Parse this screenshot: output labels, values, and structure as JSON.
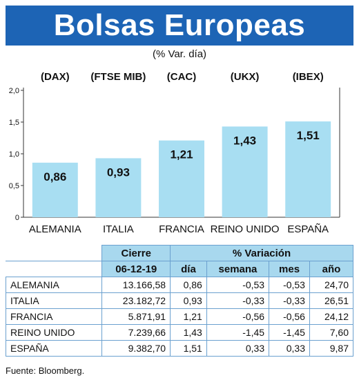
{
  "title": "Bolsas Europeas",
  "subtitle": "(% Var. día)",
  "chart_data": {
    "type": "bar",
    "index_labels": [
      "(DAX)",
      "(FTSE MIB)",
      "(CAC)",
      "(UKX)",
      "(IBEX)"
    ],
    "categories": [
      "ALEMANIA",
      "ITALIA",
      "FRANCIA",
      "REINO UNIDO",
      "ESPAÑA"
    ],
    "values": [
      0.86,
      0.93,
      1.21,
      1.43,
      1.51
    ],
    "value_labels": [
      "0,86",
      "0,93",
      "1,21",
      "1,43",
      "1,51"
    ],
    "yticks": [
      "0",
      "0,5",
      "1,0",
      "1,5",
      "2,0"
    ],
    "ylim": [
      0,
      2
    ],
    "bar_color": "#a8def2"
  },
  "table": {
    "header_cierre": "Cierre",
    "header_variacion": "% Variación",
    "date": "06-12-19",
    "columns": [
      "día",
      "semana",
      "mes",
      "año"
    ],
    "rows": [
      {
        "name": "ALEMANIA",
        "cierre": "13.166,58",
        "dia": "0,86",
        "semana": "-0,53",
        "mes": "-0,53",
        "anio": "24,70"
      },
      {
        "name": "ITALIA",
        "cierre": "23.182,72",
        "dia": "0,93",
        "semana": "-0,33",
        "mes": "-0,33",
        "anio": "26,51"
      },
      {
        "name": "FRANCIA",
        "cierre": "5.871,91",
        "dia": "1,21",
        "semana": "-0,56",
        "mes": "-0,56",
        "anio": "24,12"
      },
      {
        "name": "REINO UNIDO",
        "cierre": "7.239,66",
        "dia": "1,43",
        "semana": "-1,45",
        "mes": "-1,45",
        "anio": "7,60"
      },
      {
        "name": "ESPAÑA",
        "cierre": "9.382,70",
        "dia": "1,51",
        "semana": "0,33",
        "mes": "0,33",
        "anio": "9,87"
      }
    ]
  },
  "source": "Fuente: Bloomberg."
}
